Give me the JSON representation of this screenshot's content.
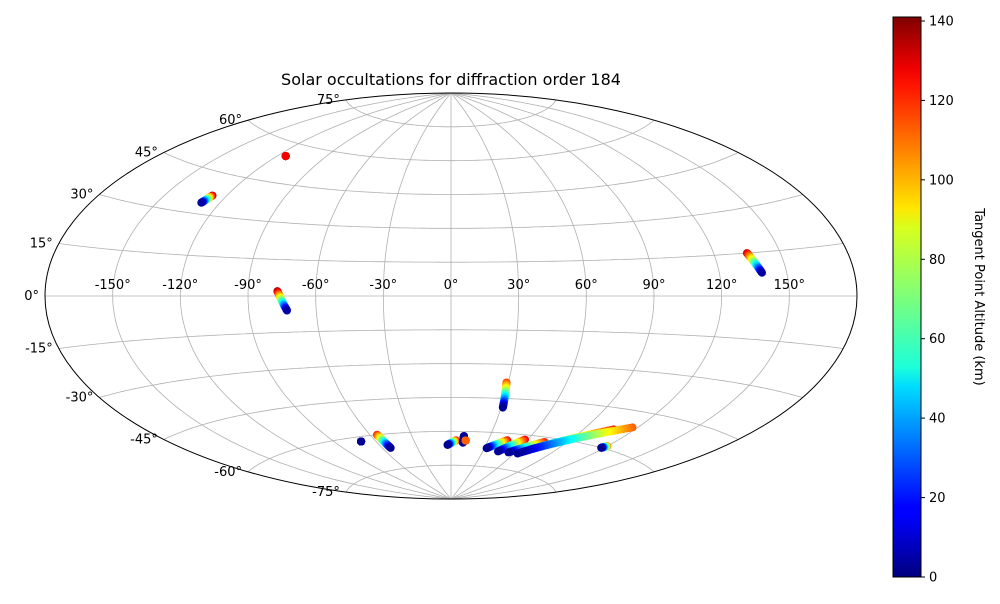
{
  "chart_data": {
    "type": "scatter",
    "projection": "aitoff",
    "title": "Solar occultations for diffraction order 184",
    "longitude_ticks": [
      "-150°",
      "-120°",
      "-90°",
      "-60°",
      "-30°",
      "0°",
      "30°",
      "60°",
      "90°",
      "120°",
      "150°"
    ],
    "longitude_values": [
      -150,
      -120,
      -90,
      -60,
      -30,
      0,
      30,
      60,
      90,
      120,
      150
    ],
    "latitude_ticks": [
      "75°",
      "60°",
      "45°",
      "30°",
      "15°",
      "0°",
      "-15°",
      "-30°",
      "-45°",
      "-60°",
      "-75°"
    ],
    "latitude_values": [
      75,
      60,
      45,
      30,
      15,
      0,
      -15,
      -30,
      -45,
      -60,
      -75
    ],
    "grid": true,
    "colorbar": {
      "label": "Tangent Point Altitude (km)",
      "colormap": "jet",
      "range": [
        0,
        141
      ],
      "ticks": [
        "0",
        "20",
        "40",
        "60",
        "80",
        "100",
        "120",
        "140"
      ],
      "tick_values": [
        0,
        20,
        40,
        60,
        80,
        100,
        120,
        140
      ]
    },
    "tracks": [
      {
        "lon_start": -127,
        "lat_start": 37,
        "lon_end": -129,
        "lat_end": 34,
        "alt_start": 135,
        "alt_end": 5
      },
      {
        "lon_start": -115,
        "lat_start": 55,
        "lon_end": -115,
        "lat_end": 55,
        "alt_start": 130,
        "alt_end": 125
      },
      {
        "lon_start": -77,
        "lat_start": 2,
        "lon_end": -73,
        "lat_end": -6,
        "alt_start": 135,
        "alt_end": 5
      },
      {
        "lon_start": -71,
        "lat_start": -62,
        "lon_end": -71,
        "lat_end": -62,
        "alt_start": 3,
        "alt_end": 3
      },
      {
        "lon_start": -55,
        "lat_start": -60,
        "lon_end": -53,
        "lat_end": -66,
        "alt_start": 120,
        "alt_end": 3
      },
      {
        "lon_start": 4,
        "lat_start": -64,
        "lon_end": -3,
        "lat_end": -66,
        "alt_start": 125,
        "alt_end": 3
      },
      {
        "lon_start": 10,
        "lat_start": -62,
        "lon_end": 10,
        "lat_end": -65,
        "alt_start": 3,
        "alt_end": 3
      },
      {
        "lon_start": 12,
        "lat_start": -64,
        "lon_end": 12,
        "lat_end": -64,
        "alt_start": 110,
        "alt_end": 110
      },
      {
        "lon_start": 29,
        "lat_start": -38,
        "lon_end": 31,
        "lat_end": -49,
        "alt_start": 115,
        "alt_end": 3
      },
      {
        "lon_start": 45,
        "lat_start": -63,
        "lon_end": 32,
        "lat_end": -67,
        "alt_start": 125,
        "alt_end": 3
      },
      {
        "lon_start": 58,
        "lat_start": -62,
        "lon_end": 44,
        "lat_end": -68,
        "alt_start": 125,
        "alt_end": 3
      },
      {
        "lon_start": 74,
        "lat_start": -62,
        "lon_end": 54,
        "lat_end": -68,
        "alt_start": 120,
        "alt_end": 3
      },
      {
        "lon_start": 108,
        "lat_start": -53,
        "lon_end": 63,
        "lat_end": -68,
        "alt_start": 120,
        "alt_end": 3
      },
      {
        "lon_start": 117,
        "lat_start": -51,
        "lon_end": 66,
        "lat_end": -67,
        "alt_start": 110,
        "alt_end": 5
      },
      {
        "lon_start": 120,
        "lat_start": -59,
        "lon_end": 118,
        "lat_end": -60,
        "alt_start": 110,
        "alt_end": 3
      },
      {
        "lon_start": 135,
        "lat_start": 15,
        "lon_end": 139,
        "lat_end": 8,
        "alt_start": 130,
        "alt_end": 5
      }
    ]
  }
}
